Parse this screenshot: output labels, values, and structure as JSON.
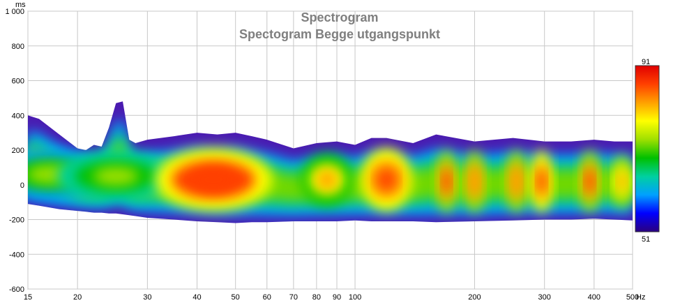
{
  "chart_data": {
    "type": "heatmap",
    "title": "Spectrogram",
    "subtitle": "Spectogram Begge utgangspunkt",
    "xlabel": "Hz",
    "ylabel": "ms",
    "x_scale": "log",
    "xlim": [
      15,
      500
    ],
    "ylim": [
      -600,
      1000
    ],
    "grid": true,
    "x_ticks": [
      15,
      20,
      30,
      40,
      50,
      60,
      70,
      80,
      90,
      100,
      200,
      300,
      400,
      500
    ],
    "x_tick_labels": [
      "15",
      "20",
      "30",
      "40",
      "50",
      "60",
      "70",
      "80",
      "90",
      "100",
      "200",
      "300",
      "400",
      "500"
    ],
    "y_ticks": [
      1000,
      800,
      600,
      400,
      200,
      0,
      -200,
      -400,
      -600
    ],
    "y_tick_labels": [
      "1 000",
      "800",
      "600",
      "400",
      "200",
      "0",
      "-200",
      "-400",
      "-600"
    ],
    "colorbar": {
      "max": 91,
      "min": 51,
      "max_label": "91",
      "min_label": "51",
      "colors": [
        "#2b007f",
        "#0000ff",
        "#00a0ff",
        "#00d0a0",
        "#00c000",
        "#a0e000",
        "#ffff00",
        "#ffa000",
        "#ff4000",
        "#e00000"
      ]
    },
    "envelope": {
      "freq": [
        15,
        16,
        18,
        20,
        21,
        22,
        23,
        24,
        25,
        26,
        27,
        28,
        30,
        35,
        40,
        45,
        50,
        55,
        60,
        70,
        80,
        90,
        100,
        110,
        120,
        140,
        160,
        200,
        250,
        300,
        350,
        400,
        450,
        500
      ],
      "top_ms": [
        400,
        380,
        290,
        210,
        200,
        230,
        220,
        330,
        470,
        480,
        260,
        240,
        260,
        280,
        300,
        290,
        300,
        280,
        260,
        210,
        240,
        250,
        230,
        270,
        270,
        240,
        290,
        250,
        270,
        250,
        250,
        260,
        250,
        250
      ],
      "bottom_ms": [
        -110,
        -120,
        -140,
        -150,
        -155,
        -160,
        -160,
        -165,
        -165,
        -170,
        -175,
        -180,
        -190,
        -200,
        -210,
        -215,
        -220,
        -215,
        -215,
        -210,
        -210,
        -210,
        -205,
        -210,
        -210,
        -210,
        -215,
        -210,
        -205,
        -200,
        -200,
        -195,
        -200,
        -205
      ]
    },
    "peaks": [
      {
        "freq_hz": 17,
        "time_ms": 60,
        "level_db": 72
      },
      {
        "freq_hz": 25,
        "time_ms": 50,
        "level_db": 73
      },
      {
        "freq_hz": 44,
        "time_ms": 30,
        "level_db": 88
      },
      {
        "freq_hz": 85,
        "time_ms": 30,
        "level_db": 80
      },
      {
        "freq_hz": 120,
        "time_ms": 30,
        "level_db": 86
      },
      {
        "freq_hz": 170,
        "time_ms": 20,
        "level_db": 85
      },
      {
        "freq_hz": 200,
        "time_ms": 20,
        "level_db": 84
      },
      {
        "freq_hz": 255,
        "time_ms": 20,
        "level_db": 84
      },
      {
        "freq_hz": 295,
        "time_ms": 20,
        "level_db": 86
      },
      {
        "freq_hz": 390,
        "time_ms": 20,
        "level_db": 85
      },
      {
        "freq_hz": 470,
        "time_ms": 20,
        "level_db": 82
      }
    ]
  }
}
